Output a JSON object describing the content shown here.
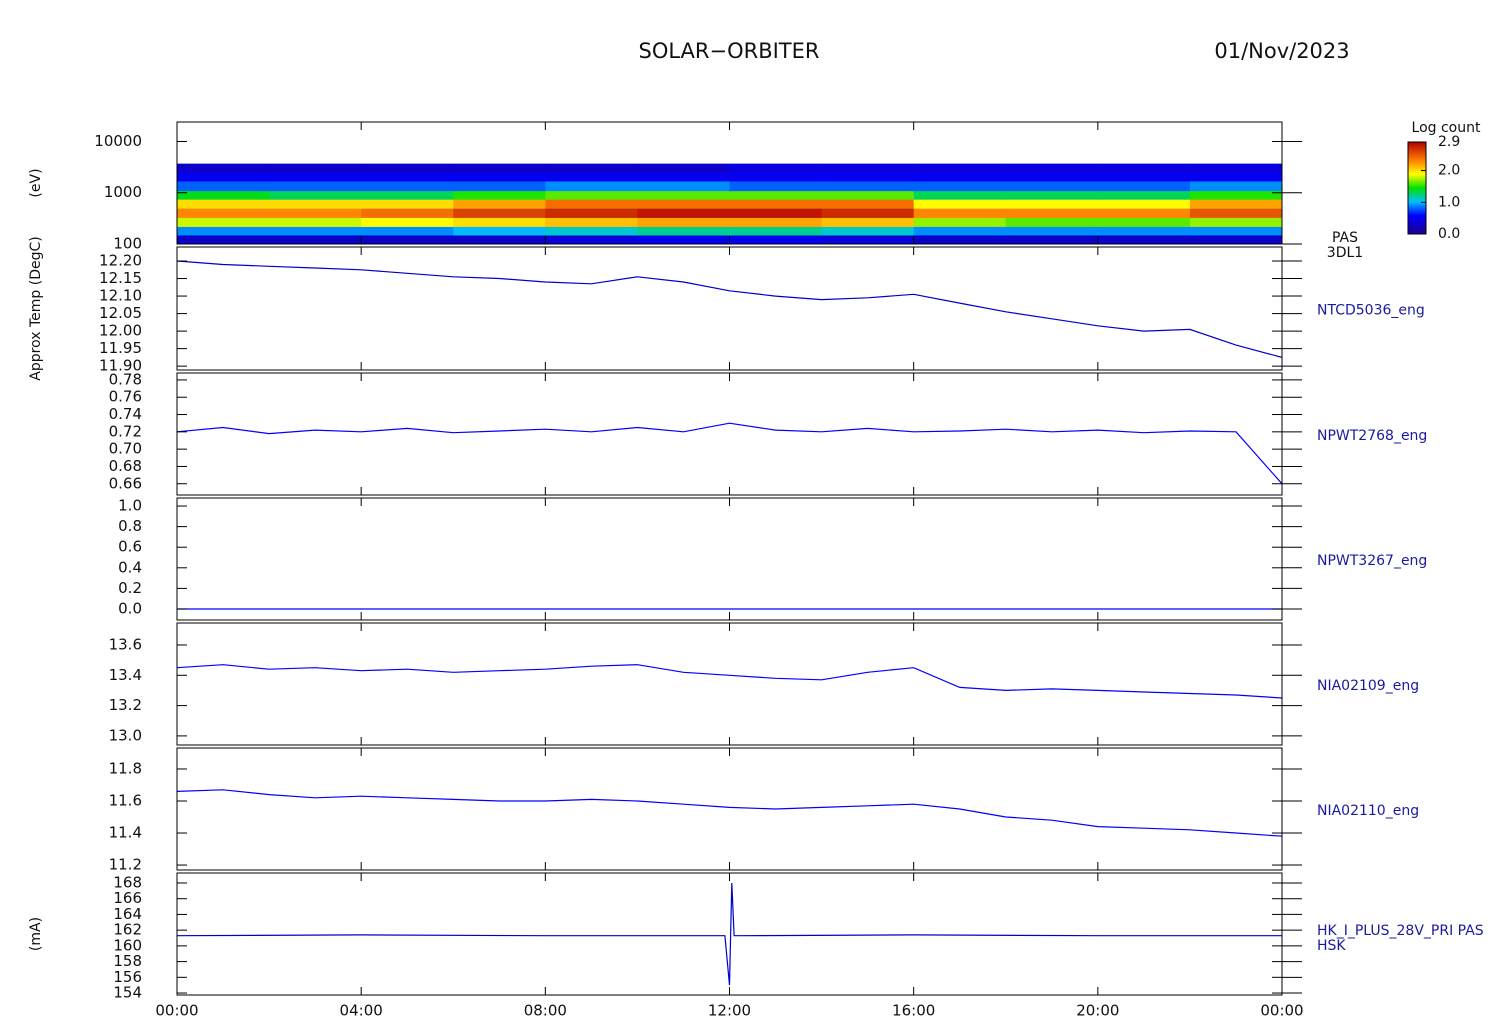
{
  "header": {
    "title": "SOLAR−ORBITER",
    "date": "01/Nov/2023"
  },
  "x_axis": {
    "xlim": [
      0,
      24
    ],
    "xticks": [
      {
        "value": 0,
        "label": "00:00"
      },
      {
        "value": 4,
        "label": "04:00"
      },
      {
        "value": 8,
        "label": "08:00"
      },
      {
        "value": 12,
        "label": "12:00"
      },
      {
        "value": 16,
        "label": "16:00"
      },
      {
        "value": 20,
        "label": "20:00"
      },
      {
        "value": 24,
        "label": "00:00"
      }
    ]
  },
  "chart_data": [
    {
      "type": "heatmap",
      "label_lines": [
        "PAS",
        "3DL1"
      ],
      "y_label": "(eV)",
      "log_y": true,
      "ylim": [
        100,
        24000
      ],
      "yticks": [
        100,
        1000,
        10000
      ],
      "x_bins": [
        0,
        2,
        4,
        6,
        8,
        10,
        12,
        14,
        16,
        18,
        20,
        22,
        24
      ],
      "y_bins": [
        100,
        150,
        220,
        330,
        500,
        750,
        1100,
        1700,
        2500,
        3700
      ],
      "values": [
        [
          0.3,
          0.3,
          0.3,
          0.3,
          0.4,
          0.5,
          0.5,
          0.4,
          0.3,
          0.3,
          0.3,
          0.3
        ],
        [
          0.9,
          0.9,
          0.9,
          1.0,
          1.1,
          1.2,
          1.2,
          1.1,
          0.9,
          0.9,
          0.9,
          0.9
        ],
        [
          1.8,
          1.8,
          1.9,
          2.0,
          2.1,
          2.2,
          2.2,
          2.1,
          1.7,
          1.6,
          1.6,
          1.7
        ],
        [
          2.3,
          2.3,
          2.4,
          2.6,
          2.7,
          2.8,
          2.8,
          2.7,
          2.3,
          2.3,
          2.3,
          2.5
        ],
        [
          2.0,
          2.0,
          2.0,
          2.2,
          2.4,
          2.4,
          2.4,
          2.4,
          1.9,
          1.9,
          1.9,
          2.2
        ],
        [
          1.4,
          1.3,
          1.3,
          1.5,
          1.6,
          1.6,
          1.6,
          1.6,
          1.3,
          1.3,
          1.3,
          1.5
        ],
        [
          0.8,
          0.8,
          0.8,
          0.8,
          0.9,
          0.9,
          0.8,
          0.8,
          0.8,
          0.8,
          0.8,
          0.9
        ],
        [
          0.5,
          0.5,
          0.5,
          0.5,
          0.5,
          0.5,
          0.5,
          0.5,
          0.5,
          0.5,
          0.5,
          0.5
        ],
        [
          0.3,
          0.3,
          0.3,
          0.3,
          0.3,
          0.3,
          0.4,
          0.4,
          0.4,
          0.4,
          0.4,
          0.4
        ]
      ],
      "colorbar": {
        "title": "Log count",
        "clim": [
          0,
          2.9
        ],
        "ticks": [
          {
            "value": 0,
            "label": "0.0"
          },
          {
            "value": 1,
            "label": "1.0"
          },
          {
            "value": 2,
            "label": "2.0"
          },
          2.9
        ]
      }
    },
    {
      "type": "line",
      "label_lines": [
        "NTCD5036_eng"
      ],
      "y_label": "Approx Temp (DegC)",
      "color": "#0000cc",
      "ylim": [
        11.889,
        12.24
      ],
      "yticks": [
        {
          "value": 11.9,
          "label": "11.90"
        },
        11.95,
        {
          "value": 12,
          "label": "12.00"
        },
        12.05,
        {
          "value": 12.1,
          "label": "12.10"
        },
        12.15,
        {
          "value": 12.2,
          "label": "12.20"
        }
      ],
      "x": [
        0,
        1,
        2,
        3,
        4,
        5,
        6,
        7,
        8,
        9,
        10,
        11,
        12,
        13,
        14,
        15,
        16,
        17,
        18,
        19,
        20,
        21,
        22,
        23,
        24
      ],
      "values": [
        12.2,
        12.19,
        12.185,
        12.18,
        12.175,
        12.165,
        12.155,
        12.15,
        12.14,
        12.135,
        12.155,
        12.14,
        12.115,
        12.1,
        12.09,
        12.095,
        12.105,
        12.08,
        12.055,
        12.035,
        12.015,
        12.0,
        12.005,
        11.96,
        11.925
      ]
    },
    {
      "type": "line",
      "label_lines": [
        "NPWT2768_eng"
      ],
      "color": "#0000ff",
      "ylim": [
        0.647,
        0.788
      ],
      "yticks": [
        0.66,
        0.68,
        {
          "value": 0.7,
          "label": "0.70"
        },
        0.72,
        0.74,
        0.76,
        0.78
      ],
      "x": [
        0,
        1,
        2,
        3,
        4,
        5,
        6,
        7,
        8,
        9,
        10,
        11,
        12,
        13,
        14,
        15,
        16,
        17,
        18,
        19,
        20,
        21,
        22,
        23,
        24
      ],
      "values": [
        0.72,
        0.725,
        0.718,
        0.722,
        0.72,
        0.724,
        0.719,
        0.721,
        0.723,
        0.72,
        0.725,
        0.72,
        0.73,
        0.722,
        0.72,
        0.724,
        0.72,
        0.721,
        0.723,
        0.72,
        0.722,
        0.719,
        0.721,
        0.72,
        0.66
      ]
    },
    {
      "type": "line",
      "label_lines": [
        "NPWT3267_eng"
      ],
      "color": "#0000ff",
      "ylim": [
        -0.107,
        1.078
      ],
      "yticks": [
        {
          "value": 0,
          "label": "0.0"
        },
        0.2,
        0.4,
        0.6,
        0.8,
        {
          "value": 1,
          "label": "1.0"
        }
      ],
      "x": [
        0,
        24
      ],
      "values": [
        0,
        0
      ]
    },
    {
      "type": "line",
      "label_lines": [
        "NIA02109_eng"
      ],
      "color": "#0000ff",
      "ylim": [
        12.94,
        13.745
      ],
      "yticks": [
        {
          "value": 13,
          "label": "13.0"
        },
        13.2,
        13.4,
        13.6
      ],
      "x": [
        0,
        1,
        2,
        3,
        4,
        5,
        6,
        7,
        8,
        9,
        10,
        11,
        12,
        13,
        14,
        15,
        16,
        17,
        18,
        19,
        20,
        21,
        22,
        23,
        24
      ],
      "values": [
        13.45,
        13.47,
        13.44,
        13.45,
        13.43,
        13.44,
        13.42,
        13.43,
        13.44,
        13.46,
        13.47,
        13.42,
        13.4,
        13.38,
        13.37,
        13.42,
        13.45,
        13.32,
        13.3,
        13.31,
        13.3,
        13.29,
        13.28,
        13.27,
        13.25
      ]
    },
    {
      "type": "line",
      "label_lines": [
        "NIA02110_eng"
      ],
      "color": "#0000ff",
      "ylim": [
        11.169,
        11.931
      ],
      "yticks": [
        11.2,
        11.4,
        11.6,
        11.8
      ],
      "x": [
        0,
        1,
        2,
        3,
        4,
        5,
        6,
        7,
        8,
        9,
        10,
        11,
        12,
        13,
        14,
        15,
        16,
        17,
        18,
        19,
        20,
        21,
        22,
        23,
        24
      ],
      "values": [
        11.66,
        11.67,
        11.64,
        11.62,
        11.63,
        11.62,
        11.61,
        11.6,
        11.6,
        11.61,
        11.6,
        11.58,
        11.56,
        11.55,
        11.56,
        11.57,
        11.58,
        11.55,
        11.5,
        11.48,
        11.44,
        11.43,
        11.42,
        11.4,
        11.38
      ]
    },
    {
      "type": "line",
      "label_lines": [
        "HK_I_PLUS_28V_PRI PAS",
        "HSK"
      ],
      "y_label": "(mA)",
      "color": "#0000cc",
      "ylim": [
        153.75,
        169.27
      ],
      "yticks": [
        154,
        156,
        158,
        160,
        162,
        164,
        166,
        168
      ],
      "x": [
        0,
        4,
        8,
        11.9,
        12,
        12.05,
        12.1,
        12.2,
        16,
        20,
        24
      ],
      "values": [
        161.3,
        161.4,
        161.3,
        161.3,
        155,
        168,
        161.3,
        161.3,
        161.4,
        161.3,
        161.3
      ]
    }
  ]
}
